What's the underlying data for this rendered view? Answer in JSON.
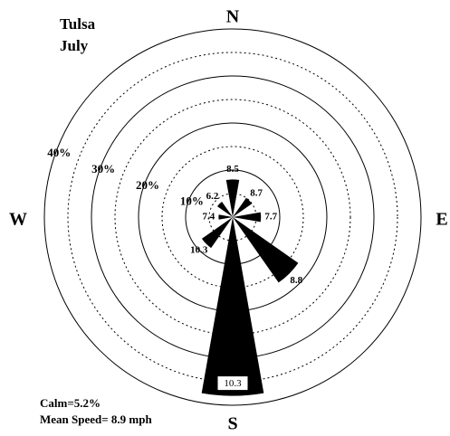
{
  "chart_data": {
    "type": "windrose",
    "title": "Tulsa",
    "subtitle": "July",
    "categories": [
      "N",
      "NE",
      "E",
      "SE",
      "S",
      "SW",
      "W",
      "NW"
    ],
    "compass": [
      "N",
      "E",
      "S",
      "W"
    ],
    "values": [
      8,
      5,
      6,
      17,
      38,
      8,
      3,
      4
    ],
    "speeds": [
      8.5,
      8.7,
      7.7,
      8.8,
      10.3,
      10.3,
      7.4,
      6.2
    ],
    "color": "#000000",
    "rlim": [
      0,
      40
    ],
    "rticks": [
      {
        "value": 10,
        "label": "10%"
      },
      {
        "value": 20,
        "label": "20%"
      },
      {
        "value": 30,
        "label": "30%"
      },
      {
        "value": 40,
        "label": "40%"
      }
    ],
    "rminorticks": [
      5,
      15,
      25,
      35
    ],
    "annotations": [
      "Calm=5.2%",
      "Mean Speed= 8.9 mph"
    ]
  }
}
